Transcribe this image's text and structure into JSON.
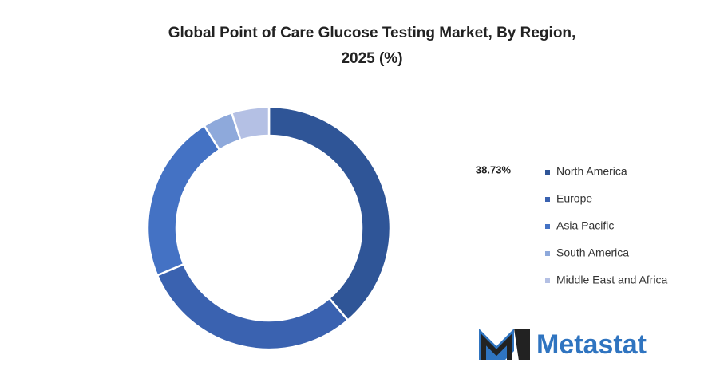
{
  "chart_data": {
    "type": "donut",
    "title": "Global Point of Care Glucose Testing Market, By Region, 2025 (%)",
    "categories": [
      "North America",
      "Europe",
      "Asia Pacific",
      "South America",
      "Middle East and Africa"
    ],
    "values": [
      38.73,
      29.9,
      22.4,
      4.0,
      4.97
    ],
    "value_labels": [
      "38.73%",
      null,
      null,
      null,
      null
    ],
    "colors": [
      "#2f5597",
      "#3a62b0",
      "#4472c4",
      "#8ea9db",
      "#b4c0e4"
    ],
    "legend": "right"
  },
  "brand": "Metastat"
}
